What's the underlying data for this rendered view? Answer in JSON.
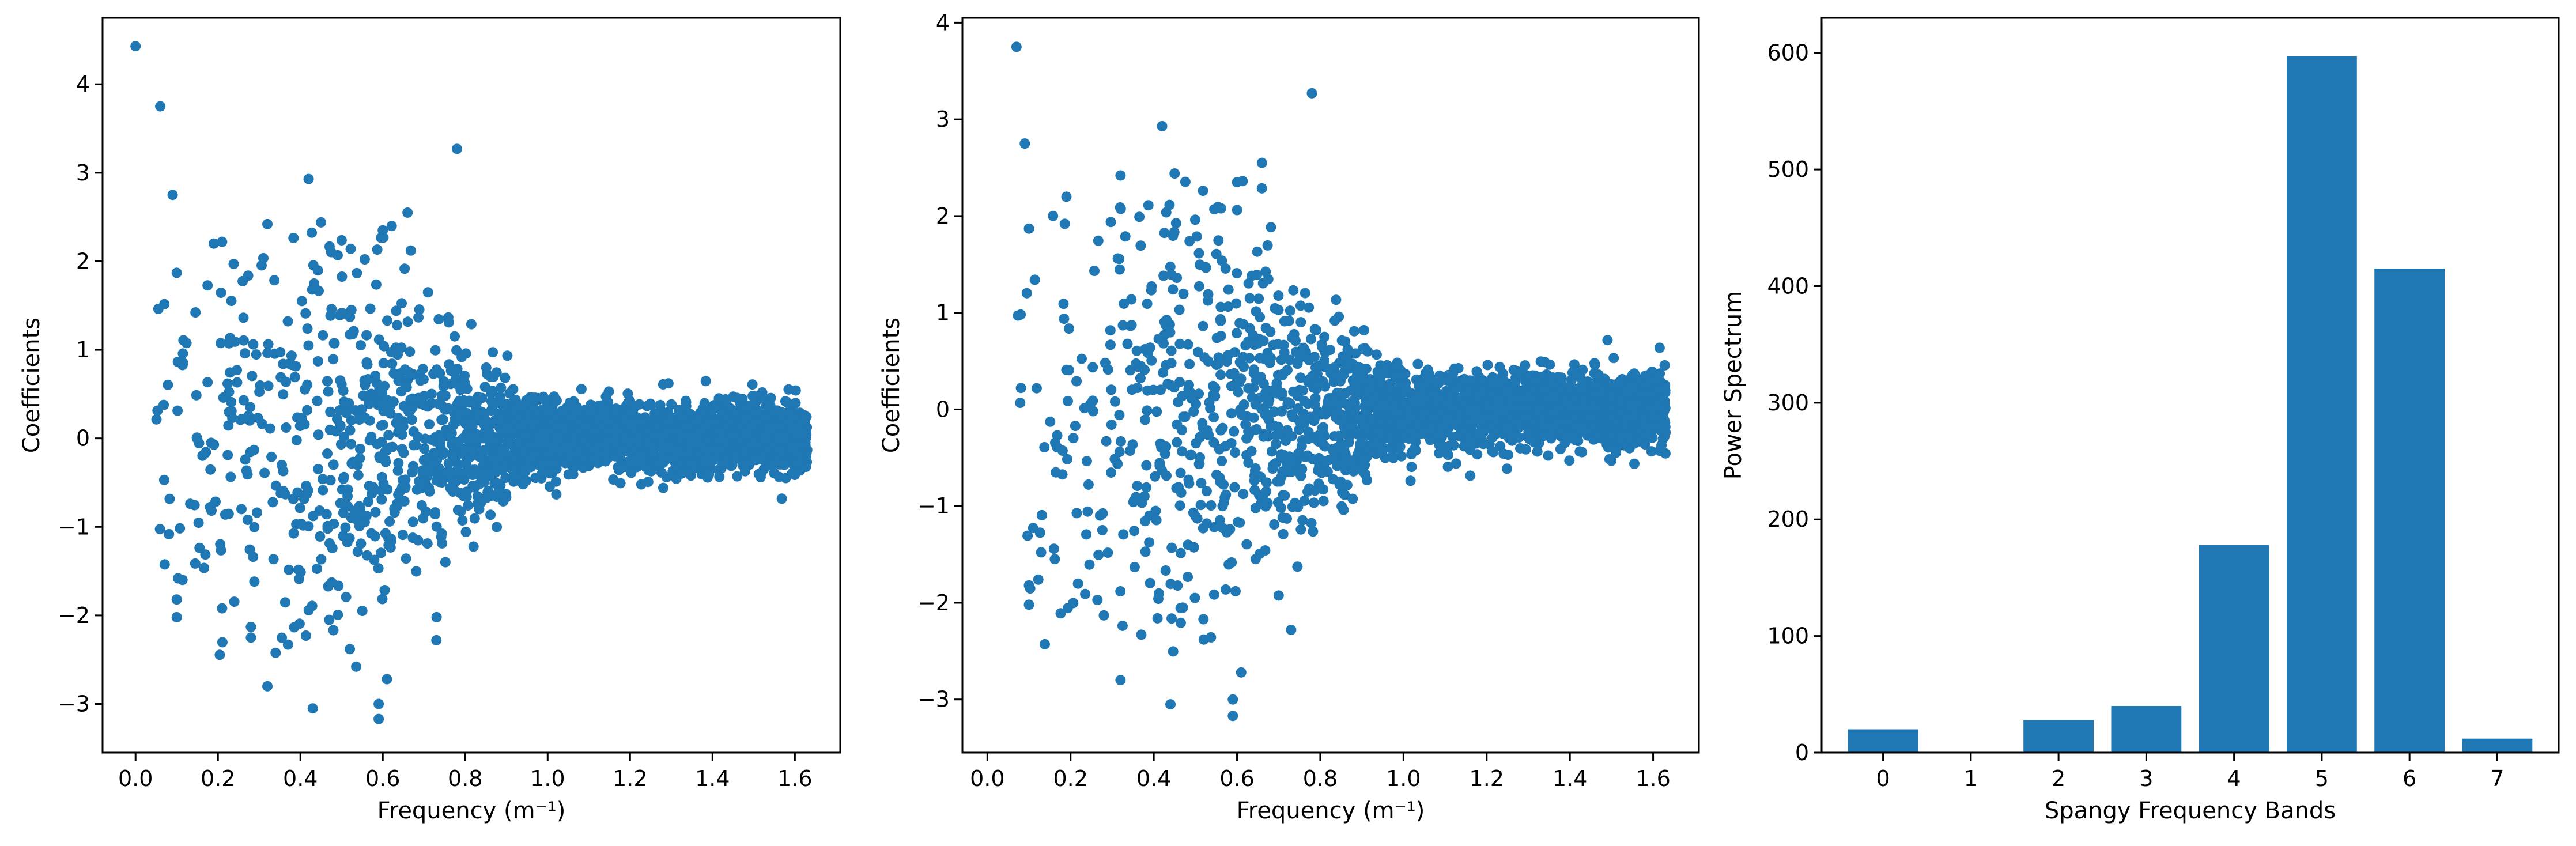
{
  "colors": {
    "series": "#1f77b4",
    "axes": "#000000"
  },
  "chart_data": [
    {
      "type": "scatter",
      "xlabel": "Frequency (m⁻¹)",
      "ylabel": "Coefficients",
      "xlim": [
        -0.08,
        1.71
      ],
      "ylim": [
        -3.55,
        4.75
      ],
      "xticks": [
        0.0,
        0.2,
        0.4,
        0.6,
        0.8,
        1.0,
        1.2,
        1.4,
        1.6
      ],
      "xtick_labels": [
        "0.0",
        "0.2",
        "0.4",
        "0.6",
        "0.8",
        "1.0",
        "1.2",
        "1.4",
        "1.6"
      ],
      "yticks": [
        -3,
        -2,
        -1,
        0,
        1,
        2,
        3,
        4
      ],
      "ytick_labels": [
        "−3",
        "−2",
        "−1",
        "0",
        "1",
        "2",
        "3",
        "4"
      ],
      "grid": false,
      "x_range": [
        0.0,
        1.63
      ],
      "point_count": 2600,
      "highlighted_points": [
        [
          0.0,
          4.43
        ],
        [
          0.06,
          3.75
        ],
        [
          0.09,
          2.75
        ],
        [
          0.78,
          3.27
        ],
        [
          0.42,
          2.93
        ],
        [
          0.66,
          2.55
        ],
        [
          0.1,
          1.87
        ],
        [
          0.19,
          2.2
        ],
        [
          0.21,
          2.22
        ],
        [
          0.32,
          2.42
        ],
        [
          0.45,
          2.44
        ],
        [
          0.6,
          2.35
        ],
        [
          0.1,
          -1.82
        ],
        [
          0.1,
          -2.02
        ],
        [
          0.21,
          -1.92
        ],
        [
          0.28,
          -2.13
        ],
        [
          0.28,
          -2.25
        ],
        [
          0.32,
          -2.8
        ],
        [
          0.43,
          -3.05
        ],
        [
          0.59,
          -3.0
        ],
        [
          0.59,
          -3.17
        ],
        [
          0.61,
          -2.72
        ],
        [
          0.52,
          -2.38
        ],
        [
          0.73,
          -2.28
        ],
        [
          0.37,
          -2.33
        ],
        [
          0.47,
          -2.05
        ]
      ]
    },
    {
      "type": "scatter",
      "xlabel": "Frequency (m⁻¹)",
      "ylabel": "Coefficients",
      "xlim": [
        -0.06,
        1.71
      ],
      "ylim": [
        -3.55,
        4.05
      ],
      "xticks": [
        0.0,
        0.2,
        0.4,
        0.6,
        0.8,
        1.0,
        1.2,
        1.4,
        1.6
      ],
      "xtick_labels": [
        "0.0",
        "0.2",
        "0.4",
        "0.6",
        "0.8",
        "1.0",
        "1.2",
        "1.4",
        "1.6"
      ],
      "yticks": [
        -3,
        -2,
        -1,
        0,
        1,
        2,
        3,
        4
      ],
      "ytick_labels": [
        "−3",
        "−2",
        "−1",
        "0",
        "1",
        "2",
        "3",
        "4"
      ],
      "grid": false,
      "x_range": [
        0.02,
        1.63
      ],
      "point_count": 2500,
      "highlighted_points": [
        [
          0.07,
          3.75
        ],
        [
          0.09,
          2.75
        ],
        [
          0.78,
          3.27
        ],
        [
          0.42,
          2.93
        ],
        [
          0.66,
          2.55
        ],
        [
          0.1,
          1.87
        ],
        [
          0.19,
          2.2
        ],
        [
          0.32,
          2.42
        ],
        [
          0.45,
          2.44
        ],
        [
          0.6,
          2.35
        ],
        [
          0.1,
          -1.82
        ],
        [
          0.1,
          -2.02
        ],
        [
          0.28,
          -2.13
        ],
        [
          0.32,
          -2.8
        ],
        [
          0.44,
          -3.05
        ],
        [
          0.59,
          -3.0
        ],
        [
          0.59,
          -3.17
        ],
        [
          0.61,
          -2.72
        ],
        [
          0.52,
          -2.38
        ],
        [
          0.73,
          -2.28
        ],
        [
          0.37,
          -2.33
        ],
        [
          0.47,
          -2.05
        ]
      ]
    },
    {
      "type": "bar",
      "xlabel": "Spangy Frequency Bands",
      "ylabel": "Power Spectrum",
      "categories": [
        "0",
        "1",
        "2",
        "3",
        "4",
        "5",
        "6",
        "7"
      ],
      "values": [
        20,
        0,
        28,
        40,
        178,
        597,
        415,
        12
      ],
      "xlim": [
        -0.7,
        7.7
      ],
      "ylim": [
        0,
        630
      ],
      "yticks": [
        0,
        100,
        200,
        300,
        400,
        500,
        600
      ],
      "ytick_labels": [
        "0",
        "100",
        "200",
        "300",
        "400",
        "500",
        "600"
      ],
      "grid": false
    }
  ]
}
